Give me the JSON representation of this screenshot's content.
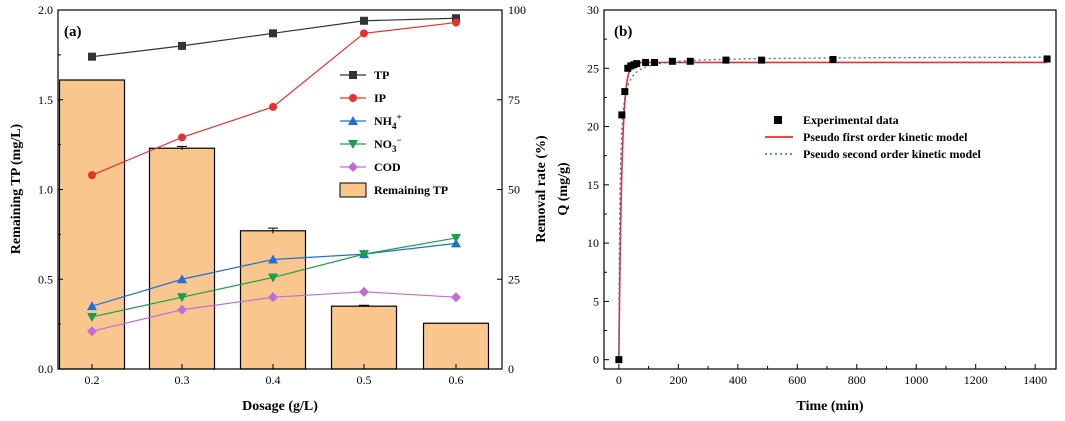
{
  "chart_data": [
    {
      "type": "bar+line",
      "panel_label": "(a)",
      "xlabel": "Dosage (g/L)",
      "ylabel_left": "Remaining TP (mg/L)",
      "ylabel_right": "Removal rate (%)",
      "ylim_left": [
        0,
        2.0
      ],
      "ylim_right": [
        0,
        100
      ],
      "yticks_left": [
        "0.0",
        "0.5",
        "1.0",
        "1.5",
        "2.0"
      ],
      "yticks_right": [
        "0",
        "25",
        "50",
        "75",
        "100"
      ],
      "categories": [
        "0.2",
        "0.3",
        "0.4",
        "0.5",
        "0.6"
      ],
      "bars": {
        "name": "Remaining TP",
        "color": "#f9c78e",
        "values": [
          1.61,
          1.23,
          0.77,
          0.35,
          0.255
        ],
        "errors": [
          0.0,
          0.01,
          0.015,
          0.005,
          0.0
        ]
      },
      "series": [
        {
          "name": "TP",
          "color": "#333333",
          "marker": "square",
          "values": [
            87,
            90,
            93.5,
            97,
            97.7
          ]
        },
        {
          "name": "IP",
          "color": "#e8302d",
          "marker": "circle",
          "values": [
            54,
            64.5,
            73,
            93.5,
            96.5
          ]
        },
        {
          "name": "NH4+",
          "label_base": "NH",
          "label_sub": "4",
          "label_sup": "+",
          "color": "#1f6fd6",
          "marker": "triangle-up",
          "values": [
            17.5,
            25,
            30.5,
            32,
            35
          ]
        },
        {
          "name": "NO3-",
          "label_base": "NO",
          "label_sub": "3",
          "label_sup": "−",
          "color": "#1a9e4a",
          "marker": "triangle-down",
          "values": [
            14.5,
            20,
            25.5,
            32,
            36.5
          ]
        },
        {
          "name": "COD",
          "color": "#c46ad8",
          "marker": "diamond",
          "values": [
            10.5,
            16.5,
            20,
            21.5,
            20
          ]
        }
      ],
      "legend_position": "top-right"
    },
    {
      "type": "scatter+line",
      "panel_label": "(b)",
      "xlabel": "Time (min)",
      "ylabel": "Q (mg/g)",
      "xlim": [
        -50,
        1470
      ],
      "ylim": [
        -0.8,
        30
      ],
      "xticks": [
        "0",
        "200",
        "400",
        "600",
        "800",
        "1000",
        "1200",
        "1400"
      ],
      "yticks": [
        "0",
        "5",
        "10",
        "15",
        "20",
        "25",
        "30"
      ],
      "experimental": {
        "name": "Experimental data",
        "x": [
          0,
          10,
          20,
          30,
          40,
          50,
          60,
          90,
          120,
          180,
          240,
          360,
          480,
          720,
          1440
        ],
        "y": [
          0,
          21,
          23,
          25,
          25.2,
          25.3,
          25.4,
          25.5,
          25.5,
          25.6,
          25.6,
          25.7,
          25.7,
          25.75,
          25.8
        ]
      },
      "models": [
        {
          "name": "Pseudo first order kinetic model",
          "color": "#e8302d",
          "style": "solid",
          "qe": 25.5,
          "k": 0.1
        },
        {
          "name": "Pseudo second order kinetic model",
          "color": "#1f6fd6",
          "style": "dotted",
          "qe": 26.0,
          "k": 0.012
        }
      ],
      "legend_position": "upper-middle"
    }
  ]
}
